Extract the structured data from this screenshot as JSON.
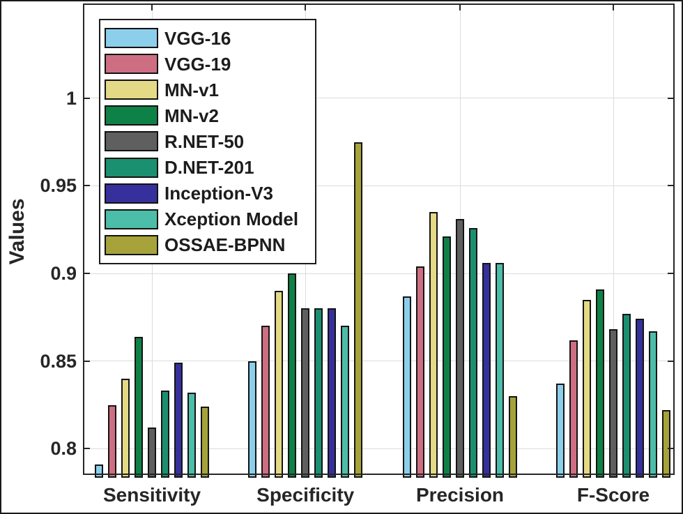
{
  "figure": {
    "background": "#ffffff",
    "frame_color": "#1a1a1a",
    "axis_color": "#262626",
    "grid_color": "#dcdcdc",
    "bar_edge_color": "#141414"
  },
  "chart_data": {
    "type": "bar",
    "title": "",
    "xlabel": "",
    "ylabel": "Values",
    "categories": [
      "Sensitivity",
      "Specificity",
      "Precision",
      "F-Score"
    ],
    "series": [
      {
        "name": "VGG-16",
        "color": "#8CCFEA",
        "values": [
          0.791,
          0.85,
          0.887,
          0.837
        ]
      },
      {
        "name": "VGG-19",
        "color": "#CE6E82",
        "values": [
          0.825,
          0.87,
          0.904,
          0.862
        ]
      },
      {
        "name": "MN-v1",
        "color": "#E4D985",
        "values": [
          0.84,
          0.89,
          0.935,
          0.885
        ]
      },
      {
        "name": "MN-v2",
        "color": "#0E8147",
        "values": [
          0.864,
          0.9,
          0.921,
          0.891
        ]
      },
      {
        "name": "R.NET-50",
        "color": "#5F5F5F",
        "values": [
          0.812,
          0.88,
          0.931,
          0.868
        ]
      },
      {
        "name": "D.NET-201",
        "color": "#1B9070",
        "values": [
          0.833,
          0.88,
          0.926,
          0.877
        ]
      },
      {
        "name": "Inception-V3",
        "color": "#36309C",
        "values": [
          0.849,
          0.88,
          0.906,
          0.874
        ]
      },
      {
        "name": "Xception Model",
        "color": "#4CBDA8",
        "values": [
          0.832,
          0.87,
          0.906,
          0.867
        ]
      },
      {
        "name": "OSSAE-BPNN",
        "color": "#A5A33A",
        "values": [
          0.824,
          0.975,
          0.83,
          0.822
        ]
      }
    ],
    "ylim": [
      0.785,
      1.054
    ],
    "yticks": [
      0.8,
      0.85,
      0.9,
      0.95,
      1
    ],
    "ytick_labels": [
      "0.8",
      "0.85",
      "0.9",
      "0.95",
      "1"
    ],
    "grid": true,
    "legend_position": "top-left"
  }
}
